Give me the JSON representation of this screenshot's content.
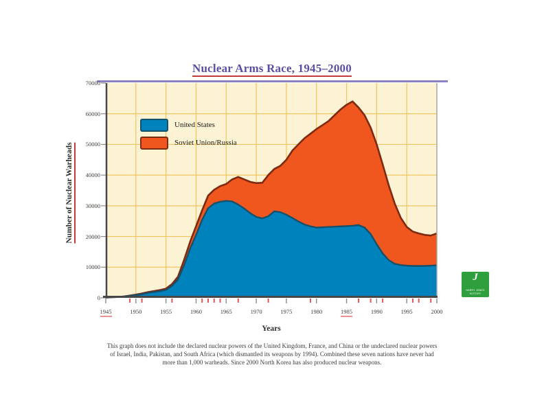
{
  "page": {
    "title": "Nuclear Arms Race, 1945–2000",
    "footnote_lines": [
      "This graph does not include the declared nuclear powers of the United Kingdom, France, and China or the undeclared nuclear powers",
      "of Israel, India, Pakistan, and South Africa (which dismantled its weapons by 1994). Combined these seven nations have never had",
      "more than 1,000 warheads. Since 2000 North Korea has also produced nuclear weapons."
    ],
    "logo": {
      "line1": "HARRY JONES",
      "line2": "HISTORY"
    }
  },
  "chart_data": {
    "type": "area",
    "stacked": true,
    "title": "Nuclear Arms Race, 1945–2000",
    "xlabel": "Years",
    "ylabel": "Number of Nuclear Warheads",
    "x_range": [
      1945,
      2000
    ],
    "ylim": [
      0,
      70000
    ],
    "grid": true,
    "legend_position": "top-left-inside",
    "yticks": [
      0,
      10000,
      20000,
      30000,
      40000,
      50000,
      60000,
      70000
    ],
    "xticks": [
      1945,
      1950,
      1955,
      1960,
      1965,
      1970,
      1975,
      1980,
      1985,
      1990,
      1995,
      2000
    ],
    "underlined_xticks": [
      1945,
      1985
    ],
    "red_event_tick_years": [
      1949,
      1951,
      1956,
      1961,
      1962,
      1963,
      1964,
      1967,
      1972,
      1979,
      1987,
      1989,
      1991,
      1996,
      1997,
      1999
    ],
    "series": [
      {
        "name": "United States",
        "color": "#0082bd",
        "edge": "#16506a",
        "values": [
          100,
          200,
          300,
          450,
          650,
          900,
          1200,
          1600,
          1900,
          2200,
          2600,
          3900,
          6000,
          10500,
          16000,
          20500,
          25400,
          29200,
          30700,
          31300,
          31600,
          31400,
          30400,
          29100,
          27600,
          26400,
          25900,
          26600,
          28200,
          27900,
          27100,
          26000,
          24900,
          23900,
          23300,
          22900,
          23000,
          23100,
          23200,
          23300,
          23400,
          23500,
          23700,
          22900,
          20800,
          17500,
          14500,
          12300,
          11100,
          10700,
          10500,
          10400,
          10400,
          10400,
          10500,
          10600
        ]
      },
      {
        "name": "Soviet Union/Russia",
        "color": "#f0571f",
        "edge": "#7c2a10",
        "values": [
          0,
          0,
          0,
          0,
          100,
          150,
          200,
          250,
          300,
          350,
          400,
          600,
          900,
          1800,
          2200,
          2900,
          3100,
          4100,
          4500,
          5100,
          5500,
          7200,
          9000,
          9500,
          10200,
          11000,
          11600,
          13400,
          13800,
          15100,
          17900,
          22000,
          25100,
          28100,
          30200,
          32100,
          33300,
          34500,
          36300,
          38100,
          39500,
          40500,
          38300,
          36600,
          34700,
          32500,
          29000,
          24400,
          19600,
          15400,
          12600,
          11200,
          10600,
          10100,
          9800,
          10400
        ]
      }
    ],
    "colors": {
      "plot_background": "#fcf2d4",
      "gridline": "#f1c55e",
      "axis_dark": "#474747",
      "axis_right": "#a5a5a5",
      "gray_tick": "#8a8a8a",
      "red_event_tick": "#e25555",
      "label_underline_red": "#ef9090",
      "title_color": "#5a4fa2",
      "title_underline": "#c23b3b",
      "title_rule": "#8d83c4",
      "logo_green": "#2f9e3c"
    }
  }
}
